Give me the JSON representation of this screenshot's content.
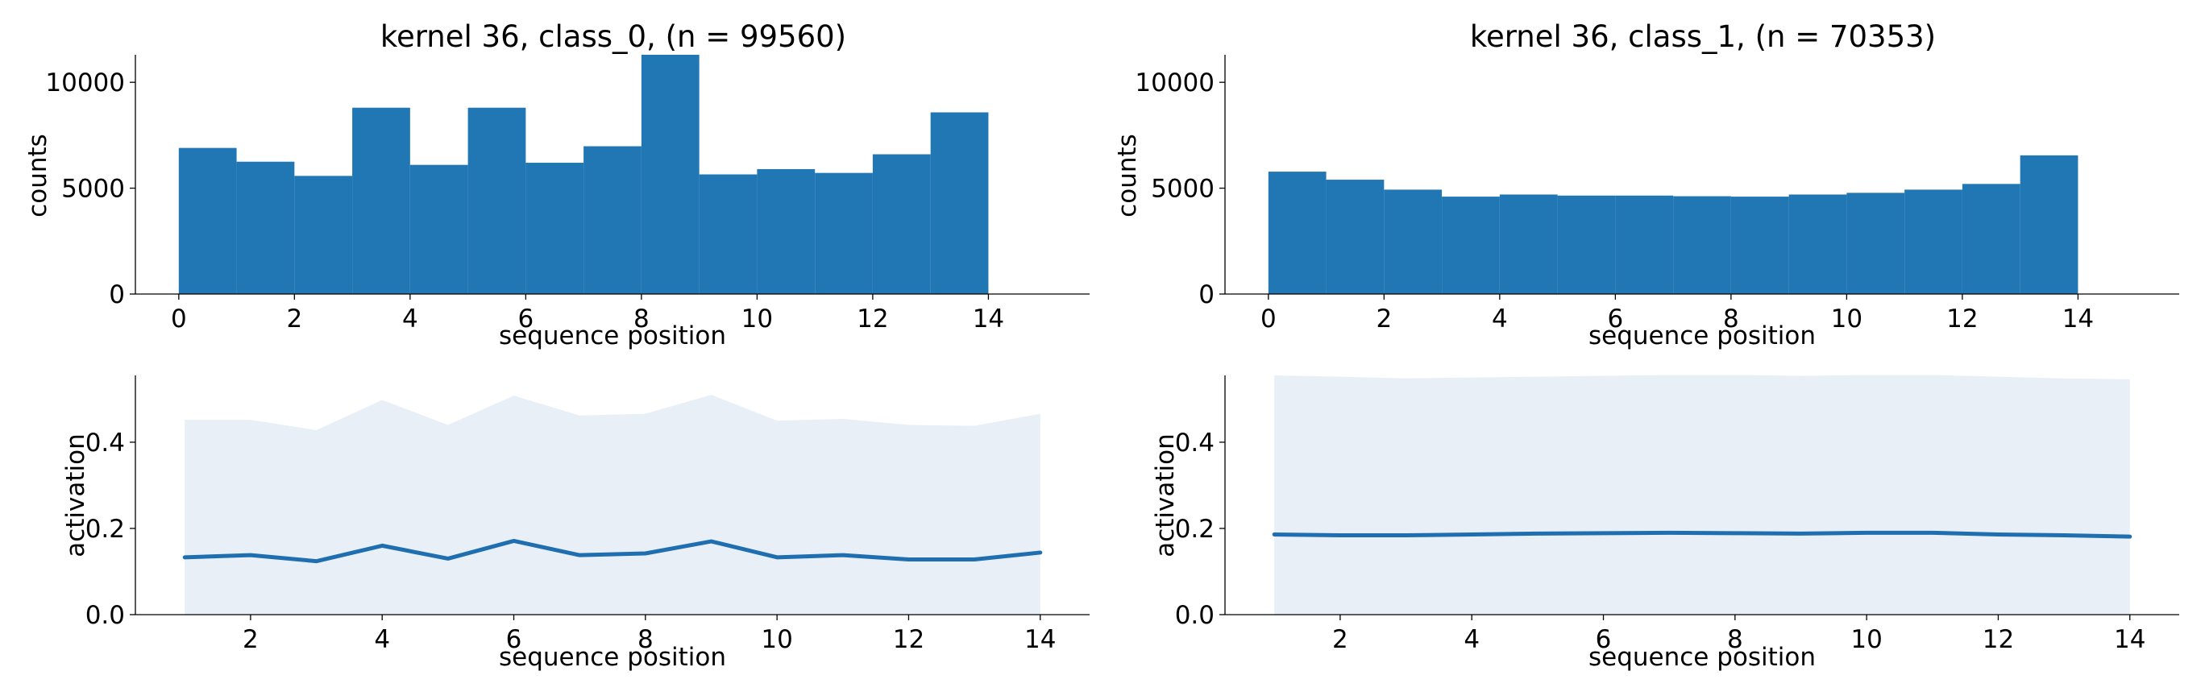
{
  "chart_data": [
    {
      "id": "hist_class0",
      "type": "bar",
      "title": "kernel 36, class_0, (n = 99560)",
      "xlabel": "sequence position",
      "ylabel": "counts",
      "bin_edges": [
        0,
        1,
        2,
        3,
        4,
        5,
        6,
        7,
        8,
        9,
        10,
        11,
        12,
        13,
        14
      ],
      "values": [
        6900,
        6250,
        5580,
        8800,
        6100,
        8800,
        6200,
        6980,
        11300,
        5650,
        5900,
        5720,
        6600,
        8580
      ],
      "xlim": [
        -0.75,
        15.75
      ],
      "ylim": [
        0,
        11300
      ],
      "xticks": [
        0,
        2,
        4,
        6,
        8,
        10,
        12,
        14
      ],
      "yticks": [
        0,
        5000,
        10000
      ],
      "color": "#2077b4",
      "grid": false
    },
    {
      "id": "hist_class1",
      "type": "bar",
      "title": "kernel 36, class_1, (n = 70353)",
      "xlabel": "sequence position",
      "ylabel": "counts",
      "bin_edges": [
        0,
        1,
        2,
        3,
        4,
        5,
        6,
        7,
        8,
        9,
        10,
        11,
        12,
        13,
        14
      ],
      "values": [
        5780,
        5400,
        4930,
        4600,
        4700,
        4650,
        4650,
        4620,
        4600,
        4700,
        4780,
        4930,
        5200,
        6550
      ],
      "xlim": [
        -0.75,
        15.75
      ],
      "ylim": [
        0,
        11300
      ],
      "xticks": [
        0,
        2,
        4,
        6,
        8,
        10,
        12,
        14
      ],
      "yticks": [
        0,
        5000,
        10000
      ],
      "color": "#2077b4",
      "grid": false
    },
    {
      "id": "line_class0",
      "type": "line",
      "xlabel": "sequence position",
      "ylabel": "activation",
      "x": [
        1,
        2,
        3,
        4,
        5,
        6,
        7,
        8,
        9,
        10,
        11,
        12,
        13,
        14
      ],
      "y": [
        0.133,
        0.138,
        0.124,
        0.16,
        0.13,
        0.171,
        0.138,
        0.142,
        0.17,
        0.133,
        0.138,
        0.128,
        0.128,
        0.144
      ],
      "band_lower": [
        0,
        0,
        0,
        0,
        0,
        0,
        0,
        0,
        0,
        0,
        0,
        0,
        0,
        0
      ],
      "band_upper": [
        0.452,
        0.452,
        0.428,
        0.498,
        0.44,
        0.508,
        0.462,
        0.466,
        0.51,
        0.45,
        0.454,
        0.44,
        0.438,
        0.466
      ],
      "xlim": [
        0.25,
        14.75
      ],
      "ylim": [
        0,
        0.555
      ],
      "xticks": [
        2,
        4,
        6,
        8,
        10,
        12,
        14
      ],
      "yticks": [
        0.0,
        0.2,
        0.4
      ],
      "ytick_labels": [
        "0.0",
        "0.2",
        "0.4"
      ],
      "line_color": "#1f6fb0",
      "band_color": "#e8eff7",
      "grid": false
    },
    {
      "id": "line_class1",
      "type": "line",
      "xlabel": "sequence position",
      "ylabel": "activation",
      "x": [
        1,
        2,
        3,
        4,
        5,
        6,
        7,
        8,
        9,
        10,
        11,
        12,
        13,
        14
      ],
      "y": [
        0.186,
        0.184,
        0.184,
        0.186,
        0.188,
        0.189,
        0.19,
        0.189,
        0.188,
        0.19,
        0.19,
        0.186,
        0.184,
        0.181
      ],
      "band_lower": [
        0,
        0,
        0,
        0,
        0,
        0,
        0,
        0,
        0,
        0,
        0,
        0,
        0,
        0
      ],
      "band_upper": [
        0.555,
        0.552,
        0.548,
        0.55,
        0.552,
        0.554,
        0.556,
        0.556,
        0.554,
        0.556,
        0.556,
        0.552,
        0.548,
        0.546
      ],
      "xlim": [
        0.25,
        14.75
      ],
      "ylim": [
        0,
        0.555
      ],
      "xticks": [
        2,
        4,
        6,
        8,
        10,
        12,
        14
      ],
      "yticks": [
        0.0,
        0.2,
        0.4
      ],
      "ytick_labels": [
        "0.0",
        "0.2",
        "0.4"
      ],
      "line_color": "#1f6fb0",
      "band_color": "#e8eff7",
      "grid": false
    }
  ]
}
